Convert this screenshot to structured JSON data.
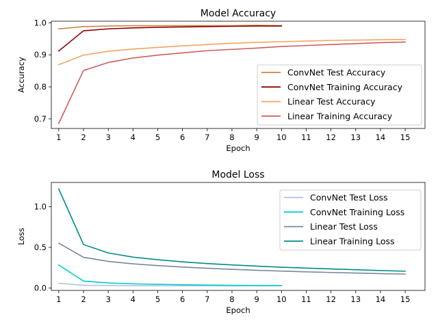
{
  "chart_data": [
    {
      "type": "line",
      "title": "Model Accuracy",
      "xlabel": "Epoch",
      "ylabel": "Accuracy",
      "xlim": [
        0.7,
        15.8
      ],
      "ylim": [
        0.67,
        1.005
      ],
      "xticks": [
        1,
        2,
        3,
        4,
        5,
        6,
        7,
        8,
        9,
        10,
        11,
        12,
        13,
        14,
        15
      ],
      "yticks": [
        0.7,
        0.8,
        0.9,
        1.0
      ],
      "ytick_labels": [
        "0.7",
        "0.8",
        "0.9",
        "1.0"
      ],
      "legend_position": "center-right",
      "series": [
        {
          "name": "ConvNet Test Accuracy",
          "color": "#cd853f",
          "x": [
            1,
            2,
            3,
            4,
            5,
            6,
            7,
            8,
            9,
            10
          ],
          "values": [
            0.981,
            0.988,
            0.99,
            0.991,
            0.991,
            0.991,
            0.991,
            0.991,
            0.992,
            0.991
          ]
        },
        {
          "name": "ConvNet Training Accuracy",
          "color": "#8b0000",
          "x": [
            1,
            2,
            3,
            4,
            5,
            6,
            7,
            8,
            9,
            10
          ],
          "values": [
            0.912,
            0.975,
            0.981,
            0.984,
            0.986,
            0.987,
            0.988,
            0.989,
            0.99,
            0.99
          ]
        },
        {
          "name": "Linear Test Accuracy",
          "color": "#f4a460",
          "x": [
            1,
            2,
            3,
            4,
            5,
            6,
            7,
            8,
            9,
            10,
            11,
            12,
            13,
            14,
            15
          ],
          "values": [
            0.869,
            0.899,
            0.911,
            0.918,
            0.923,
            0.928,
            0.932,
            0.936,
            0.939,
            0.941,
            0.943,
            0.945,
            0.946,
            0.947,
            0.948
          ]
        },
        {
          "name": "Linear Training Accuracy",
          "color": "#cd5c5c",
          "x": [
            1,
            2,
            3,
            4,
            5,
            6,
            7,
            8,
            9,
            10,
            11,
            12,
            13,
            14,
            15
          ],
          "values": [
            0.686,
            0.851,
            0.876,
            0.89,
            0.899,
            0.906,
            0.913,
            0.917,
            0.921,
            0.926,
            0.929,
            0.932,
            0.935,
            0.938,
            0.94
          ]
        }
      ]
    },
    {
      "type": "line",
      "title": "Model Loss",
      "xlabel": "Epoch",
      "ylabel": "Loss",
      "xlim": [
        0.7,
        15.8
      ],
      "ylim": [
        -0.03,
        1.3
      ],
      "xticks": [
        1,
        2,
        3,
        4,
        5,
        6,
        7,
        8,
        9,
        10,
        11,
        12,
        13,
        14,
        15
      ],
      "yticks": [
        0.0,
        0.5,
        1.0
      ],
      "ytick_labels": [
        "0.0",
        "0.5",
        "1.0"
      ],
      "legend_position": "upper-right",
      "series": [
        {
          "name": "ConvNet Test Loss",
          "color": "#b0c4de",
          "x": [
            1,
            2,
            3,
            4,
            5,
            6,
            7,
            8,
            9,
            10
          ],
          "values": [
            0.058,
            0.033,
            0.03,
            0.028,
            0.027,
            0.027,
            0.027,
            0.026,
            0.026,
            0.027
          ]
        },
        {
          "name": "ConvNet Training Loss",
          "color": "#00ced1",
          "x": [
            1,
            2,
            3,
            4,
            5,
            6,
            7,
            8,
            9,
            10
          ],
          "values": [
            0.283,
            0.085,
            0.062,
            0.051,
            0.045,
            0.04,
            0.036,
            0.033,
            0.031,
            0.03
          ]
        },
        {
          "name": "Linear Test Loss",
          "color": "#778899",
          "x": [
            1,
            2,
            3,
            4,
            5,
            6,
            7,
            8,
            9,
            10,
            11,
            12,
            13,
            14,
            15
          ],
          "values": [
            0.552,
            0.378,
            0.327,
            0.298,
            0.276,
            0.258,
            0.243,
            0.23,
            0.218,
            0.208,
            0.199,
            0.191,
            0.184,
            0.177,
            0.171
          ]
        },
        {
          "name": "Linear Training Loss",
          "color": "#008b8b",
          "x": [
            1,
            2,
            3,
            4,
            5,
            6,
            7,
            8,
            9,
            10,
            11,
            12,
            13,
            14,
            15
          ],
          "values": [
            1.22,
            0.535,
            0.432,
            0.38,
            0.348,
            0.322,
            0.301,
            0.284,
            0.269,
            0.256,
            0.245,
            0.235,
            0.225,
            0.215,
            0.207
          ]
        }
      ]
    }
  ]
}
